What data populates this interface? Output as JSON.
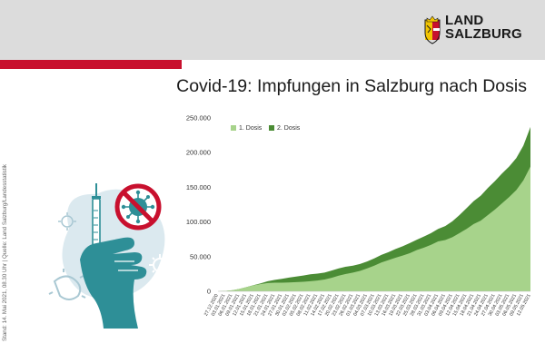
{
  "header": {
    "logo_line1": "LAND",
    "logo_line2": "SALZBURG"
  },
  "colors": {
    "header_bg": "#dcdcdc",
    "accent_red": "#c8102e",
    "dose1": "#a7d38b",
    "dose2": "#4b8c35",
    "illustration_teal": "#2e8f97",
    "illustration_light": "#dbe9ef"
  },
  "icons": {
    "logo": "salzburg-crest-icon",
    "illustration": "vaccine-syringe-hand-icon",
    "virus": "virus-crossed-icon"
  },
  "page": {
    "title": "Covid-19: Impfungen in Salzburg nach Dosis",
    "source": "Stand: 14. Mai 2021, 08.30 Uhr | Quelle: Land Salzburg/Landesstatistik"
  },
  "chart_data": {
    "type": "area",
    "stacked": true,
    "title": "Covid-19: Impfungen in Salzburg nach Dosis",
    "xlabel": "",
    "ylabel": "",
    "ylim": [
      0,
      250000
    ],
    "yticks": [
      0,
      50000,
      100000,
      150000,
      200000,
      250000
    ],
    "ytick_labels": [
      "0",
      "50.000",
      "100.000",
      "150.000",
      "200.000",
      "250.000"
    ],
    "grid": false,
    "legend_position": "top-left",
    "x_tick_labels": [
      "27.12.2020",
      "03.01.2021",
      "06.01.2021",
      "09.01.2021",
      "12.01.2021",
      "15.01.2021",
      "18.01.2021",
      "21.01.2021",
      "24.01.2021",
      "27.01.2021",
      "30.01.2021",
      "02.02.2021",
      "05.02.2021",
      "08.02.2021",
      "11.02.2021",
      "14.02.2021",
      "17.02.2021",
      "20.02.2021",
      "23.02.2021",
      "26.02.2021",
      "01.03.2021",
      "04.03.2021",
      "07.03.2021",
      "10.03.2021",
      "13.03.2021",
      "16.03.2021",
      "19.03.2021",
      "22.03.2021",
      "25.03.2021",
      "28.03.2021",
      "31.03.2021",
      "03.04.2021",
      "06.04.2021",
      "09.04.2021",
      "12.04.2021",
      "15.04.2021",
      "18.04.2021",
      "21.04.2021",
      "24.04.2021",
      "27.04.2021",
      "30.04.2021",
      "03.05.2021",
      "06.05.2021",
      "09.05.2021",
      "12.05.2021"
    ],
    "x": [
      "27.12.2020",
      "03.01.2021",
      "06.01.2021",
      "09.01.2021",
      "12.01.2021",
      "15.01.2021",
      "18.01.2021",
      "21.01.2021",
      "24.01.2021",
      "27.01.2021",
      "30.01.2021",
      "02.02.2021",
      "05.02.2021",
      "08.02.2021",
      "11.02.2021",
      "14.02.2021",
      "17.02.2021",
      "20.02.2021",
      "23.02.2021",
      "26.02.2021",
      "01.03.2021",
      "04.03.2021",
      "07.03.2021",
      "10.03.2021",
      "13.03.2021",
      "16.03.2021",
      "19.03.2021",
      "22.03.2021",
      "25.03.2021",
      "28.03.2021",
      "31.03.2021",
      "03.04.2021",
      "06.04.2021",
      "09.04.2021",
      "12.04.2021",
      "15.04.2021",
      "18.04.2021",
      "21.04.2021",
      "24.04.2021",
      "27.04.2021",
      "30.04.2021",
      "03.05.2021",
      "06.05.2021",
      "09.05.2021",
      "12.05.2021"
    ],
    "series": [
      {
        "name": "1. Dosis",
        "values": [
          0,
          500,
          1500,
          3500,
          6000,
          8500,
          10500,
          12000,
          12500,
          12500,
          12800,
          13200,
          13800,
          14500,
          15500,
          17000,
          19500,
          22500,
          25000,
          27000,
          29500,
          33000,
          37000,
          41500,
          45000,
          48500,
          51500,
          55000,
          59500,
          63000,
          67000,
          72000,
          74000,
          78000,
          84000,
          90000,
          97000,
          102000,
          110000,
          118000,
          127000,
          136000,
          146000,
          160000,
          180000
        ]
      },
      {
        "name": "2. Dosis",
        "values": [
          0,
          0,
          0,
          0,
          0,
          300,
          1000,
          2500,
          4000,
          5500,
          7000,
          8000,
          9000,
          10000,
          10000,
          10000,
          10500,
          10500,
          10500,
          10000,
          10000,
          10000,
          10500,
          11000,
          11500,
          12500,
          13500,
          14500,
          15000,
          16000,
          17000,
          18000,
          20000,
          23000,
          26000,
          30000,
          33000,
          36000,
          39000,
          41000,
          43000,
          44000,
          46000,
          50000,
          57000
        ]
      }
    ]
  }
}
